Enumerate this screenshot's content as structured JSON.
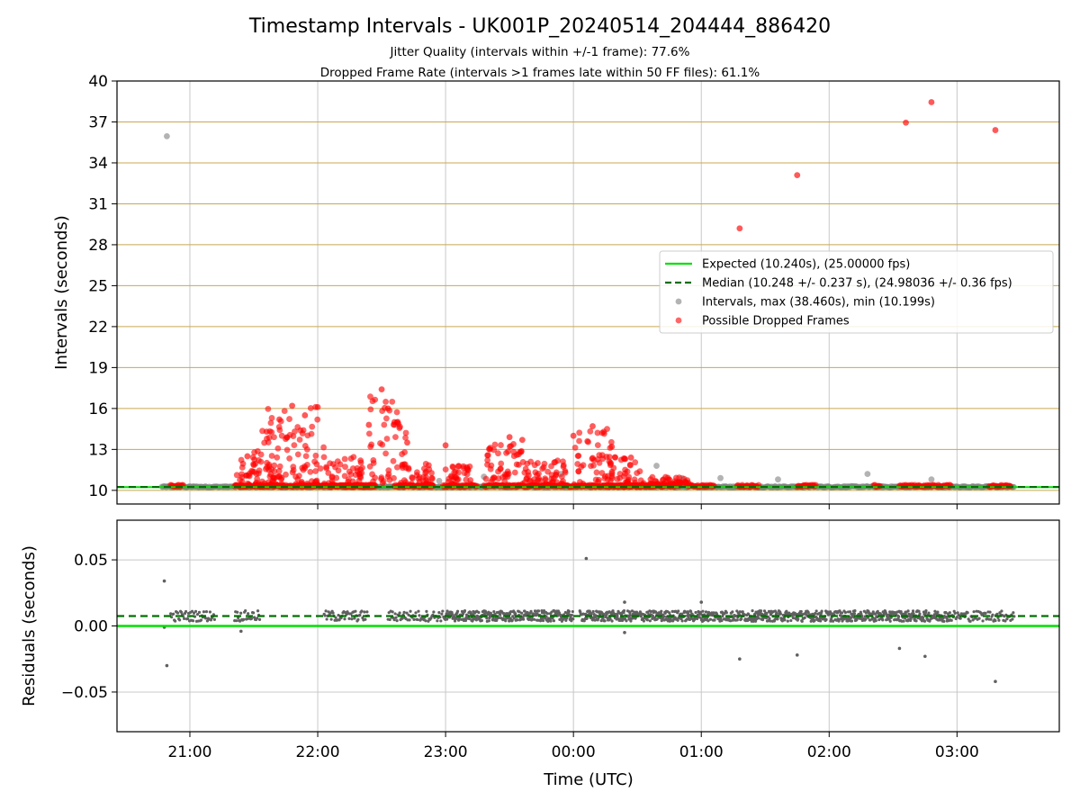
{
  "title": "Timestamp Intervals - UK001P_20240514_204444_886420",
  "subtitle_1": "Jitter Quality (intervals within +/-1 frame): 77.6%",
  "subtitle_2": "Dropped Frame Rate (intervals >1 frames late within 50 FF files): 61.1%",
  "colors": {
    "expected": "#00e000",
    "median": "#007000",
    "intervals": "#808080",
    "dropped": "#ff0000",
    "hgrid_top": "#c8a850",
    "grid": "#c8c8c8",
    "residual_points": "#606060"
  },
  "chart_data": [
    {
      "type": "scatter",
      "ylabel": "Intervals (seconds)",
      "ylim": [
        9,
        40
      ],
      "yticks": [
        10,
        13,
        16,
        19,
        22,
        25,
        28,
        31,
        34,
        37,
        40
      ],
      "xlim_hours": [
        20.43,
        27.8
      ],
      "grid": "on",
      "legend_placement": "center-right",
      "expected_value": 10.24,
      "median_value": 10.248,
      "legend": [
        "Expected (10.240s), (25.00000 fps)",
        "Median (10.248 +/- 0.237 s), (24.98036 +/- 0.36 fps)",
        "Intervals, max (38.460s), min (10.199s)",
        "Possible Dropped Frames"
      ],
      "series": [
        {
          "name": "Intervals, max (38.460s), min (10.199s)",
          "points": [
            [
              20.82,
              35.95
            ],
            [
              22.95,
              10.7
            ],
            [
              23.3,
              11.0
            ],
            [
              23.9,
              11.2
            ],
            [
              24.65,
              11.8
            ],
            [
              24.85,
              10.9
            ],
            [
              25.15,
              10.9
            ],
            [
              25.6,
              10.8
            ],
            [
              26.3,
              11.2
            ],
            [
              26.8,
              10.8
            ]
          ]
        },
        {
          "name": "Possible Dropped Frames",
          "points": [
            [
              21.45,
              12.5
            ],
            [
              21.6,
              14.3
            ],
            [
              21.7,
              15.2
            ],
            [
              21.8,
              16.2
            ],
            [
              21.9,
              15.5
            ],
            [
              22.0,
              16.1
            ],
            [
              22.4,
              14.8
            ],
            [
              22.5,
              17.4
            ],
            [
              22.55,
              16.0
            ],
            [
              22.6,
              15.0
            ],
            [
              22.7,
              13.5
            ],
            [
              23.0,
              13.3
            ],
            [
              23.5,
              13.9
            ],
            [
              23.6,
              13.7
            ],
            [
              24.0,
              14.0
            ],
            [
              24.15,
              14.7
            ],
            [
              24.3,
              13.2
            ],
            [
              24.45,
              12.4
            ],
            [
              25.3,
              29.2
            ],
            [
              25.75,
              33.1
            ],
            [
              26.6,
              36.95
            ],
            [
              26.8,
              38.45
            ],
            [
              27.3,
              36.4
            ]
          ],
          "dense_segments_hours": [
            [
              20.85,
              20.95
            ],
            [
              21.35,
              22.45
            ],
            [
              22.05,
              22.45
            ],
            [
              22.6,
              22.9
            ],
            [
              22.98,
              23.25
            ],
            [
              23.3,
              24.65
            ],
            [
              24.25,
              24.8
            ],
            [
              24.9,
              25.1
            ],
            [
              25.28,
              25.45
            ],
            [
              25.75,
              25.9
            ],
            [
              26.35,
              26.4
            ],
            [
              26.55,
              26.95
            ],
            [
              27.25,
              27.42
            ]
          ]
        }
      ]
    },
    {
      "type": "scatter",
      "xlabel": "Time (UTC)",
      "ylabel": "Residuals (seconds)",
      "ylim": [
        -0.08,
        0.08
      ],
      "yticks": [
        -0.05,
        0.0,
        0.05
      ],
      "ytick_labels": [
        "−0.05",
        "0.00",
        "0.05"
      ],
      "xticks_hours": [
        21,
        22,
        23,
        24,
        25,
        26,
        27
      ],
      "xtick_labels": [
        "21:00",
        "22:00",
        "23:00",
        "00:00",
        "01:00",
        "02:00",
        "03:00"
      ],
      "expected_value": 0.0,
      "median_value": 0.0075,
      "series": [
        {
          "name": "Residuals",
          "points": [
            [
              20.8,
              0.034
            ],
            [
              20.82,
              -0.03
            ],
            [
              20.8,
              -0.001
            ],
            [
              21.4,
              -0.004
            ],
            [
              24.1,
              0.051
            ],
            [
              24.4,
              0.018
            ],
            [
              24.4,
              -0.005
            ],
            [
              25.0,
              0.018
            ],
            [
              25.3,
              -0.025
            ],
            [
              25.75,
              -0.022
            ],
            [
              26.55,
              -0.017
            ],
            [
              26.75,
              -0.023
            ],
            [
              27.3,
              -0.042
            ]
          ],
          "band": {
            "center": 0.0075,
            "spread": 0.004
          },
          "dense_segments_hours": [
            [
              20.85,
              21.2
            ],
            [
              21.35,
              21.55
            ],
            [
              22.05,
              22.4
            ],
            [
              22.55,
              23.0
            ],
            [
              23.0,
              24.0
            ],
            [
              24.05,
              25.4
            ],
            [
              25.4,
              26.1
            ],
            [
              26.1,
              26.95
            ],
            [
              26.95,
              27.45
            ]
          ]
        }
      ]
    }
  ]
}
